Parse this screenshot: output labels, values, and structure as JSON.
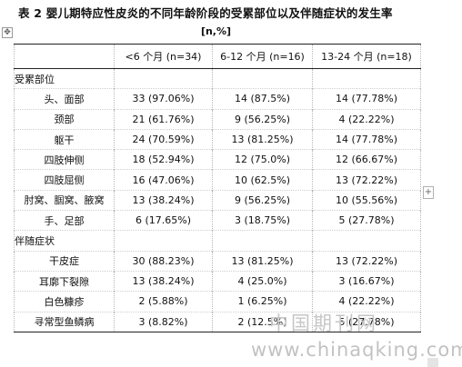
{
  "document": {
    "title": "表 2  婴儿期特应性皮炎的不同年龄阶段的受累部位以及伴随症状的发生率",
    "unit": "[n,%]"
  },
  "table": {
    "headers": [
      "",
      "<6 个月 (n=34)",
      "6-12 个月 (n=16)",
      "13-24 个月 (n=18)"
    ],
    "rows": [
      {
        "label": "受累部位",
        "section": true,
        "values": [
          "",
          "",
          ""
        ]
      },
      {
        "label": "头、面部",
        "section": false,
        "values": [
          "33 (97.06%)",
          "14 (87.5%)",
          "14 (77.78%)"
        ]
      },
      {
        "label": "颈部",
        "section": false,
        "values": [
          "21 (61.76%)",
          "9 (56.25%)",
          "4 (22.22%)"
        ]
      },
      {
        "label": "躯干",
        "section": false,
        "values": [
          "24 (70.59%)",
          "13 (81.25%)",
          "14 (77.78%)"
        ]
      },
      {
        "label": "四肢伸侧",
        "section": false,
        "values": [
          "18 (52.94%)",
          "12 (75.0%)",
          "12 (66.67%)"
        ]
      },
      {
        "label": "四肢屈侧",
        "section": false,
        "values": [
          "16 (47.06%)",
          "10 (62.5%)",
          "13 (72.22%)"
        ]
      },
      {
        "label": "肘窝、腘窝、腋窝",
        "section": false,
        "values": [
          "13 (38.24%)",
          "9 (56.25%)",
          "10 (55.56%)"
        ]
      },
      {
        "label": "手、足部",
        "section": false,
        "values": [
          "6 (17.65%)",
          "3 (18.75%)",
          "5 (27.78%)"
        ]
      },
      {
        "label": "伴随症状",
        "section": true,
        "values": [
          "",
          "",
          ""
        ]
      },
      {
        "label": "干皮症",
        "section": false,
        "values": [
          "30 (88.23%)",
          "13 (81.25%)",
          "13 (72.22%)"
        ]
      },
      {
        "label": "耳廓下裂隙",
        "section": false,
        "values": [
          "13 (38.24%)",
          "4 (25.0%)",
          "3 (16.67%)"
        ]
      },
      {
        "label": "白色糠疹",
        "section": false,
        "values": [
          "2 (5.88%)",
          "1 (6.25%)",
          "4 (22.22%)"
        ]
      },
      {
        "label": "寻常型鱼鳞病",
        "section": false,
        "values": [
          "3 (8.82%)",
          "2 (12.5%)",
          "5 (27.78%)"
        ]
      }
    ]
  },
  "editor": {
    "move_handle_icon": "move-handle-icon",
    "move_handle_glyph": "✥",
    "add_icon": "add-icon",
    "add_glyph": "+"
  },
  "watermark": {
    "cn": "中国期刊网",
    "url": "www.chinaqking.com"
  }
}
